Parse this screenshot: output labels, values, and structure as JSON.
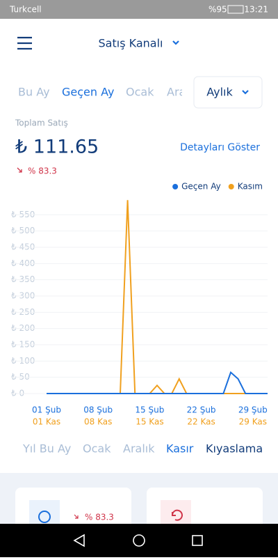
{
  "status_bar": {
    "carrier": "Turkcell",
    "battery": "%95",
    "time": "13:21"
  },
  "header": {
    "title": "Satış Kanalı"
  },
  "period_tabs": [
    "Bu Ay",
    "Geçen Ay",
    "Ocak",
    "Ara"
  ],
  "period_select": "Aylık",
  "summary": {
    "label": "Toplam Satış",
    "amount": "₺ 111.65",
    "details_link": "Detayları Göster",
    "change": "% 83.3"
  },
  "chart_data": {
    "type": "line",
    "x": [
      1,
      2,
      3,
      4,
      5,
      6,
      7,
      8,
      9,
      10,
      11,
      12,
      13,
      14,
      15,
      16,
      17,
      18,
      19,
      20,
      21,
      22,
      23,
      24,
      25,
      26,
      27,
      28,
      29,
      30,
      31
    ],
    "series": [
      {
        "name": "Geçen Ay",
        "color": "#1a6fdc",
        "values": [
          0,
          0,
          0,
          0,
          0,
          0,
          0,
          0,
          0,
          0,
          0,
          0,
          0,
          0,
          0,
          0,
          0,
          0,
          0,
          0,
          0,
          0,
          0,
          0,
          0,
          65,
          45,
          0,
          0,
          0,
          0
        ]
      },
      {
        "name": "Kasım",
        "color": "#f0a01e",
        "values": [
          0,
          0,
          0,
          0,
          0,
          0,
          0,
          0,
          0,
          0,
          0,
          595,
          0,
          0,
          0,
          25,
          0,
          0,
          45,
          0,
          0,
          0,
          0,
          0,
          0,
          0,
          0,
          0,
          0,
          0,
          null
        ]
      }
    ],
    "xlim": [
      1,
      31
    ],
    "xticks": [
      {
        "value": 1,
        "label": "01 Şub"
      },
      {
        "value": 8,
        "label": "08 Şub"
      },
      {
        "value": 15,
        "label": "15 Şub"
      },
      {
        "value": 22,
        "label": "22 Şub"
      },
      {
        "value": 29,
        "label": "29 Şub"
      }
    ],
    "xticks_secondary": [
      {
        "value": 1,
        "label": "01 Kas"
      },
      {
        "value": 8,
        "label": "08 Kas"
      },
      {
        "value": 15,
        "label": "15 Kas"
      },
      {
        "value": 22,
        "label": "22 Kas"
      },
      {
        "value": 29,
        "label": "29 Kas"
      }
    ],
    "ylim": [
      0,
      600
    ],
    "yticks": [
      {
        "value": 0,
        "label": "₺ 0"
      },
      {
        "value": 50,
        "label": "₺ 50"
      },
      {
        "value": 100,
        "label": "₺ 100"
      },
      {
        "value": 150,
        "label": "₺ 150"
      },
      {
        "value": 200,
        "label": "₺ 200"
      },
      {
        "value": 250,
        "label": "₺ 250"
      },
      {
        "value": 300,
        "label": "₺ 300"
      },
      {
        "value": 350,
        "label": "₺ 350"
      },
      {
        "value": 400,
        "label": "₺ 400"
      },
      {
        "value": 450,
        "label": "₺ 450"
      },
      {
        "value": 500,
        "label": "₺ 500"
      },
      {
        "value": 550,
        "label": "₺ 550"
      }
    ],
    "grid": true,
    "legend": "top-right"
  },
  "bottom_tabs": [
    "Yıl Bu Ay",
    "Ocak",
    "Aralık",
    "Kasır",
    "Kıyaslama"
  ],
  "card": {
    "change": "% 83.3"
  }
}
